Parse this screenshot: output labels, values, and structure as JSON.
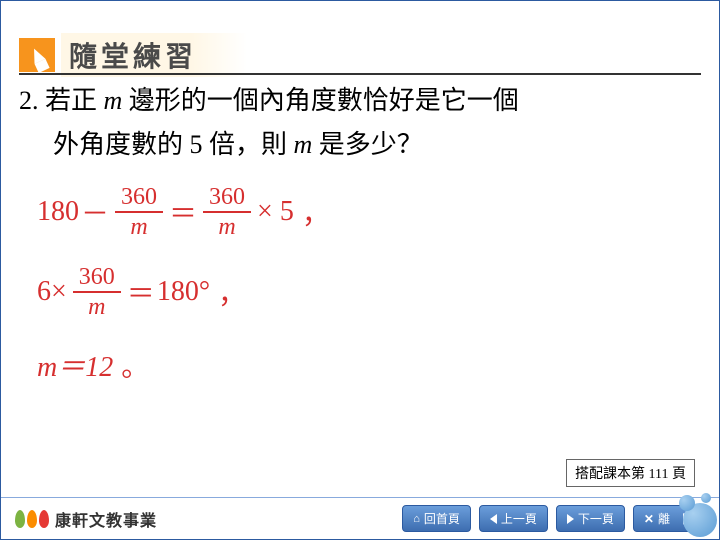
{
  "header": {
    "title": "隨堂練習"
  },
  "question": {
    "number": "2.",
    "line1_a": "若正 ",
    "line1_b": " 邊形的一個內角度數恰好是它一個",
    "line2_a": "外角度數的 5 倍，則 ",
    "line2_b": " 是多少？",
    "var": "m"
  },
  "solution": {
    "eq1": {
      "a": "180",
      "minus": "－",
      "n1": "360",
      "d1": "m",
      "eq": "＝",
      "n2": "360",
      "d2": "m",
      "tail": "× 5",
      "p": "，"
    },
    "eq2": {
      "a": "6×",
      "n": "360",
      "d": "m",
      "eq": "＝",
      "b": "180°",
      "p": "，"
    },
    "eq3": {
      "text": "m＝12",
      "p": "。"
    }
  },
  "footer_note": {
    "label": "搭配課本第",
    "page": "111",
    "suffix": "頁"
  },
  "logo": {
    "text": "康軒文教事業",
    "leaf_colors": [
      "#7cb342",
      "#fb8c00",
      "#e53935"
    ]
  },
  "nav": {
    "home": "回首頁",
    "prev": "上一頁",
    "next": "下一頁",
    "exit": "離　開"
  }
}
